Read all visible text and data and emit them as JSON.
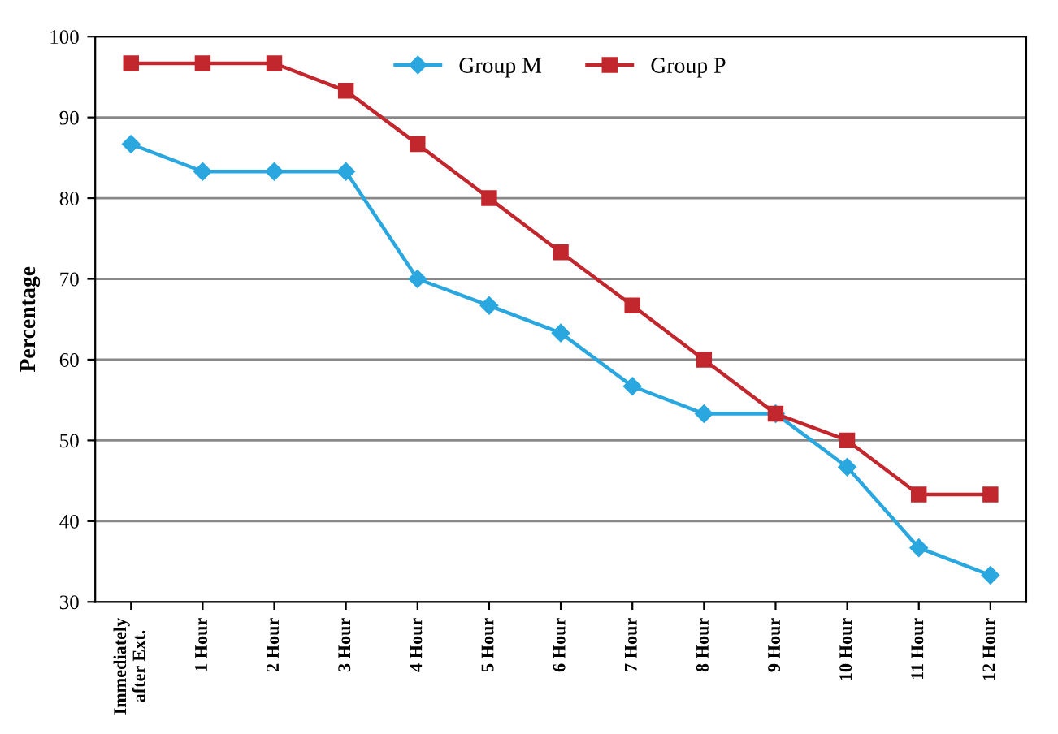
{
  "chart_data": {
    "type": "line",
    "ylabel": "Percentage",
    "categories": [
      "Immediately after Ext.",
      "1 Hour",
      "2 Hour",
      "3 Hour",
      "4 Hour",
      "5 Hour",
      "6 Hour",
      "7 Hour",
      "8 Hour",
      "9 Hour",
      "10 Hour",
      "11 Hour",
      "12 Hour"
    ],
    "series": [
      {
        "name": "Group M",
        "color": "#2aa7df",
        "marker": "diamond",
        "values": [
          86.7,
          83.3,
          83.3,
          83.3,
          70,
          66.7,
          63.3,
          56.7,
          53.3,
          53.3,
          46.7,
          36.7,
          33.3
        ]
      },
      {
        "name": "Group P",
        "color": "#c1272d",
        "marker": "square",
        "values": [
          96.7,
          96.7,
          96.7,
          93.3,
          86.7,
          80,
          73.3,
          66.7,
          60,
          53.3,
          50,
          43.3,
          43.3
        ]
      }
    ],
    "ylim": [
      30,
      100
    ],
    "yticks": [
      30,
      40,
      50,
      60,
      70,
      80,
      90,
      100
    ],
    "grid": "y",
    "legend": "top"
  }
}
